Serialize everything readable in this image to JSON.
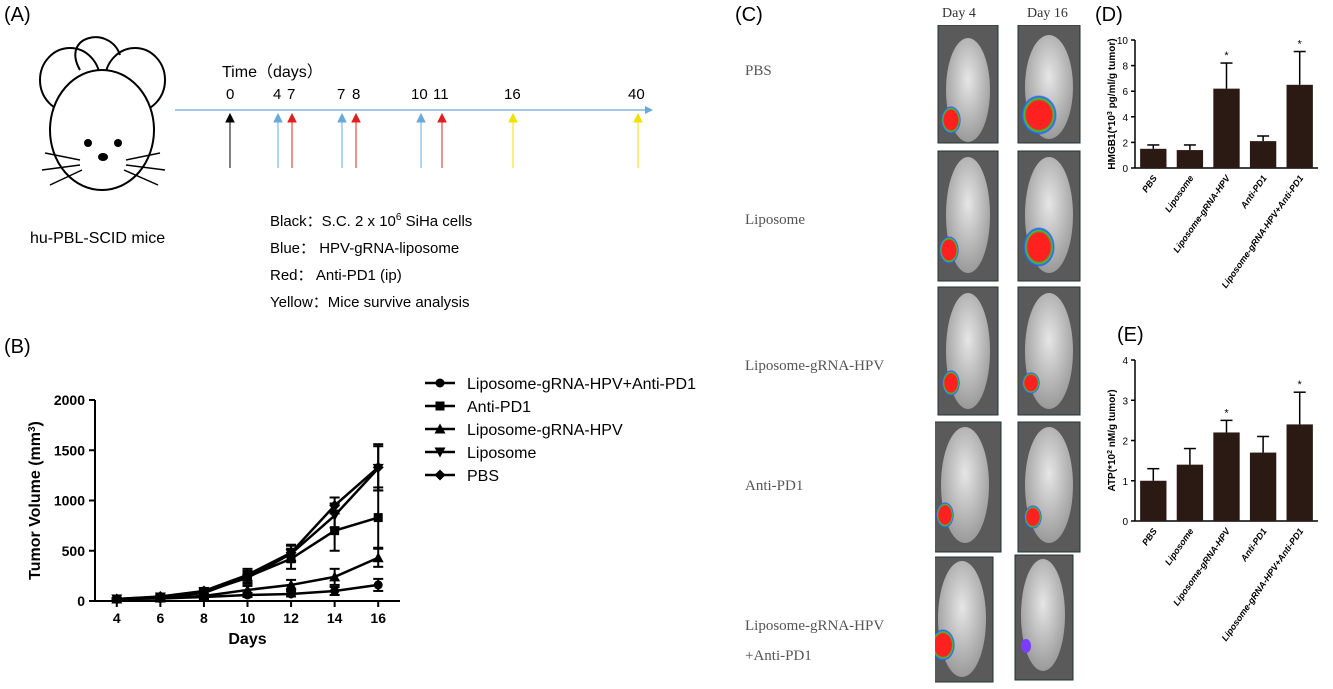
{
  "panels": {
    "a": "(A)",
    "b": "(B)",
    "c": "(C)",
    "d": "(D)",
    "e": "(E)"
  },
  "panel_a": {
    "mouse_label": "hu-PBL-SCID mice",
    "time_label": "Time（days）",
    "ticks": [
      "0",
      "4",
      "7",
      "7",
      "8",
      "10",
      "11",
      "16",
      "40"
    ],
    "legend": {
      "black": "Black：S.C. 2 x 10",
      "black_sup": "6",
      "black_tail": " SiHa cells",
      "blue": "Blue： HPV-gRNA-liposome",
      "red": "Red： Anti-PD1 (ip)",
      "yellow": "Yellow：Mice survive analysis"
    },
    "colors": {
      "black": "#000000",
      "blue": "#6aa9d8",
      "red": "#e02020",
      "yellow": "#f2e000",
      "axis": "#6aa9d8"
    }
  },
  "panel_b": {
    "legend": [
      "Liposome-gRNA-HPV+Anti-PD1",
      "Anti-PD1",
      "Liposome-gRNA-HPV",
      "Liposome",
      "PBS"
    ]
  },
  "chart_data": [
    {
      "type": "line",
      "xlabel": "Days",
      "ylabel": "Tumor Volume (mm3)",
      "x": [
        4,
        6,
        8,
        10,
        12,
        14,
        16
      ],
      "xticks": [
        "4",
        "6",
        "8",
        "10",
        "12",
        "14",
        "16"
      ],
      "yticks": [
        "0",
        "500",
        "1000",
        "1500",
        "2000"
      ],
      "ylim": [
        0,
        2000
      ],
      "series": [
        {
          "name": "Liposome-gRNA-HPV+Anti-PD1",
          "marker": "circle",
          "values": [
            20,
            25,
            40,
            60,
            70,
            100,
            160
          ],
          "err": [
            10,
            10,
            15,
            20,
            25,
            40,
            60
          ]
        },
        {
          "name": "Anti-PD1",
          "marker": "square",
          "values": [
            20,
            40,
            80,
            240,
            420,
            700,
            830
          ],
          "err": [
            10,
            15,
            30,
            60,
            100,
            200,
            300
          ]
        },
        {
          "name": "Liposome-gRNA-HPV",
          "marker": "triangle-up",
          "values": [
            20,
            30,
            50,
            110,
            160,
            240,
            430
          ],
          "err": [
            10,
            10,
            15,
            40,
            50,
            80,
            90
          ]
        },
        {
          "name": "Liposome",
          "marker": "triangle-down",
          "values": [
            20,
            40,
            90,
            230,
            470,
            850,
            1320
          ],
          "err": [
            10,
            15,
            30,
            60,
            80,
            120,
            220
          ]
        },
        {
          "name": "PBS",
          "marker": "diamond",
          "values": [
            20,
            45,
            100,
            260,
            480,
            950,
            1330
          ],
          "err": [
            10,
            15,
            30,
            60,
            80,
            80,
            230
          ]
        }
      ]
    },
    {
      "type": "bar",
      "ylabel": "HMGB1(*10^3 pg/ml/g tumor)",
      "categories": [
        "PBS",
        "Liposome",
        "Liposome-gRNA-HPV",
        "Anti-PD1",
        "Liposome-gRNA-HPV+Anti-PD1"
      ],
      "values": [
        1.5,
        1.4,
        6.2,
        2.1,
        6.5
      ],
      "err": [
        0.3,
        0.4,
        2.0,
        0.4,
        2.6
      ],
      "significant": [
        "",
        "",
        "*",
        "",
        "*"
      ],
      "ylim": [
        0,
        10
      ],
      "yticks": [
        "0",
        "2",
        "4",
        "6",
        "8",
        "10"
      ]
    },
    {
      "type": "bar",
      "ylabel": "ATP(*10^2 nM/g tumor)",
      "categories": [
        "PBS",
        "Liposome",
        "Liposome-gRNA-HPV",
        "Anti-PD1",
        "Liposome-gRNA-HPV+Anti-PD1"
      ],
      "values": [
        1.0,
        1.4,
        2.2,
        1.7,
        2.4
      ],
      "err": [
        0.3,
        0.4,
        0.3,
        0.4,
        0.8
      ],
      "significant": [
        "",
        "",
        "*",
        "",
        "*"
      ],
      "ylim": [
        0,
        4
      ],
      "yticks": [
        "0",
        "1",
        "2",
        "3",
        "4"
      ]
    }
  ],
  "panel_c": {
    "day4": "Day 4",
    "day16": "Day 16",
    "groups": [
      "PBS",
      "Liposome",
      "Liposome-gRNA-HPV",
      "Anti-PD1",
      "Liposome-gRNA-HPV"
    ],
    "group5_line2": "+Anti-PD1"
  }
}
